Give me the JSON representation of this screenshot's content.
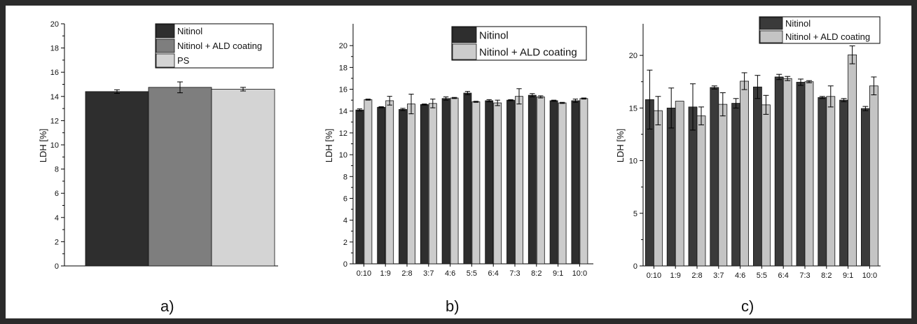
{
  "colors": {
    "dark": "#2e2e2e",
    "medium": "#7e7e7e",
    "light": "#d4d4d4",
    "frame": "#2b2b2b"
  },
  "chart_data": [
    {
      "panel": "a)",
      "type": "bar",
      "ylabel": "LDH [%]",
      "ylim": [
        0,
        20
      ],
      "yticks": [
        0,
        2,
        4,
        6,
        8,
        10,
        12,
        14,
        16,
        18,
        20
      ],
      "categories": [
        ""
      ],
      "series": [
        {
          "name": "Nitinol",
          "values": [
            14.4
          ],
          "errors": [
            0.15
          ],
          "color": "#2e2e2e"
        },
        {
          "name": "Nitinol + ALD coating",
          "values": [
            14.75
          ],
          "errors": [
            0.45
          ],
          "color": "#7e7e7e"
        },
        {
          "name": "PS",
          "values": [
            14.6
          ],
          "errors": [
            0.15
          ],
          "color": "#d4d4d4"
        }
      ],
      "legend": "top-right"
    },
    {
      "panel": "b)",
      "type": "bar",
      "ylabel": "LDH [%]",
      "ylim": [
        0,
        22
      ],
      "yticks": [
        0,
        2,
        4,
        6,
        8,
        10,
        12,
        14,
        16,
        18,
        20
      ],
      "categories": [
        "0:10",
        "1:9",
        "2:8",
        "3:7",
        "4:6",
        "5:5",
        "6:4",
        "7:3",
        "8:2",
        "9:1",
        "10:0"
      ],
      "series": [
        {
          "name": "Nitinol",
          "values": [
            14.1,
            14.35,
            14.15,
            14.6,
            15.15,
            15.65,
            14.95,
            15.0,
            15.45,
            14.95,
            14.95
          ],
          "errors": [
            0.1,
            0.05,
            0.1,
            0.05,
            0.15,
            0.15,
            0.1,
            0.05,
            0.15,
            0.05,
            0.15
          ],
          "color": "#2e2e2e"
        },
        {
          "name": "Nitinol + ALD coating",
          "values": [
            15.05,
            14.95,
            14.65,
            14.7,
            15.2,
            14.85,
            14.75,
            15.35,
            15.3,
            14.75,
            15.15
          ],
          "errors": [
            0.05,
            0.4,
            0.9,
            0.4,
            0.05,
            0.05,
            0.25,
            0.7,
            0.1,
            0.05,
            0.05
          ],
          "color": "#cccccc"
        }
      ],
      "legend": "top-right"
    },
    {
      "panel": "c)",
      "type": "bar",
      "ylabel": "LDH [%]",
      "ylim": [
        0,
        23
      ],
      "yticks": [
        0,
        5,
        10,
        15,
        20
      ],
      "categories": [
        "0:10",
        "1:9",
        "2:8",
        "3:7",
        "4:6",
        "5:5",
        "6:4",
        "7:3",
        "8:2",
        "9:1",
        "10:0"
      ],
      "series": [
        {
          "name": "Nitinol",
          "values": [
            15.8,
            15.0,
            15.1,
            16.95,
            15.45,
            17.0,
            17.95,
            17.45,
            16.0,
            15.75,
            14.95
          ],
          "errors": [
            2.8,
            1.9,
            2.2,
            0.15,
            0.45,
            1.1,
            0.25,
            0.3,
            0.1,
            0.15,
            0.2
          ],
          "color": "#3a3a3a"
        },
        {
          "name": "Nitinol + ALD coating",
          "values": [
            14.75,
            15.65,
            14.25,
            15.35,
            17.55,
            15.3,
            17.8,
            17.5,
            16.1,
            20.05,
            17.1
          ],
          "errors": [
            1.35,
            0.0,
            0.85,
            1.1,
            0.8,
            0.9,
            0.2,
            0.1,
            1.0,
            0.85,
            0.85
          ],
          "color": "#c4c4c4"
        }
      ],
      "legend": "top-right"
    }
  ]
}
